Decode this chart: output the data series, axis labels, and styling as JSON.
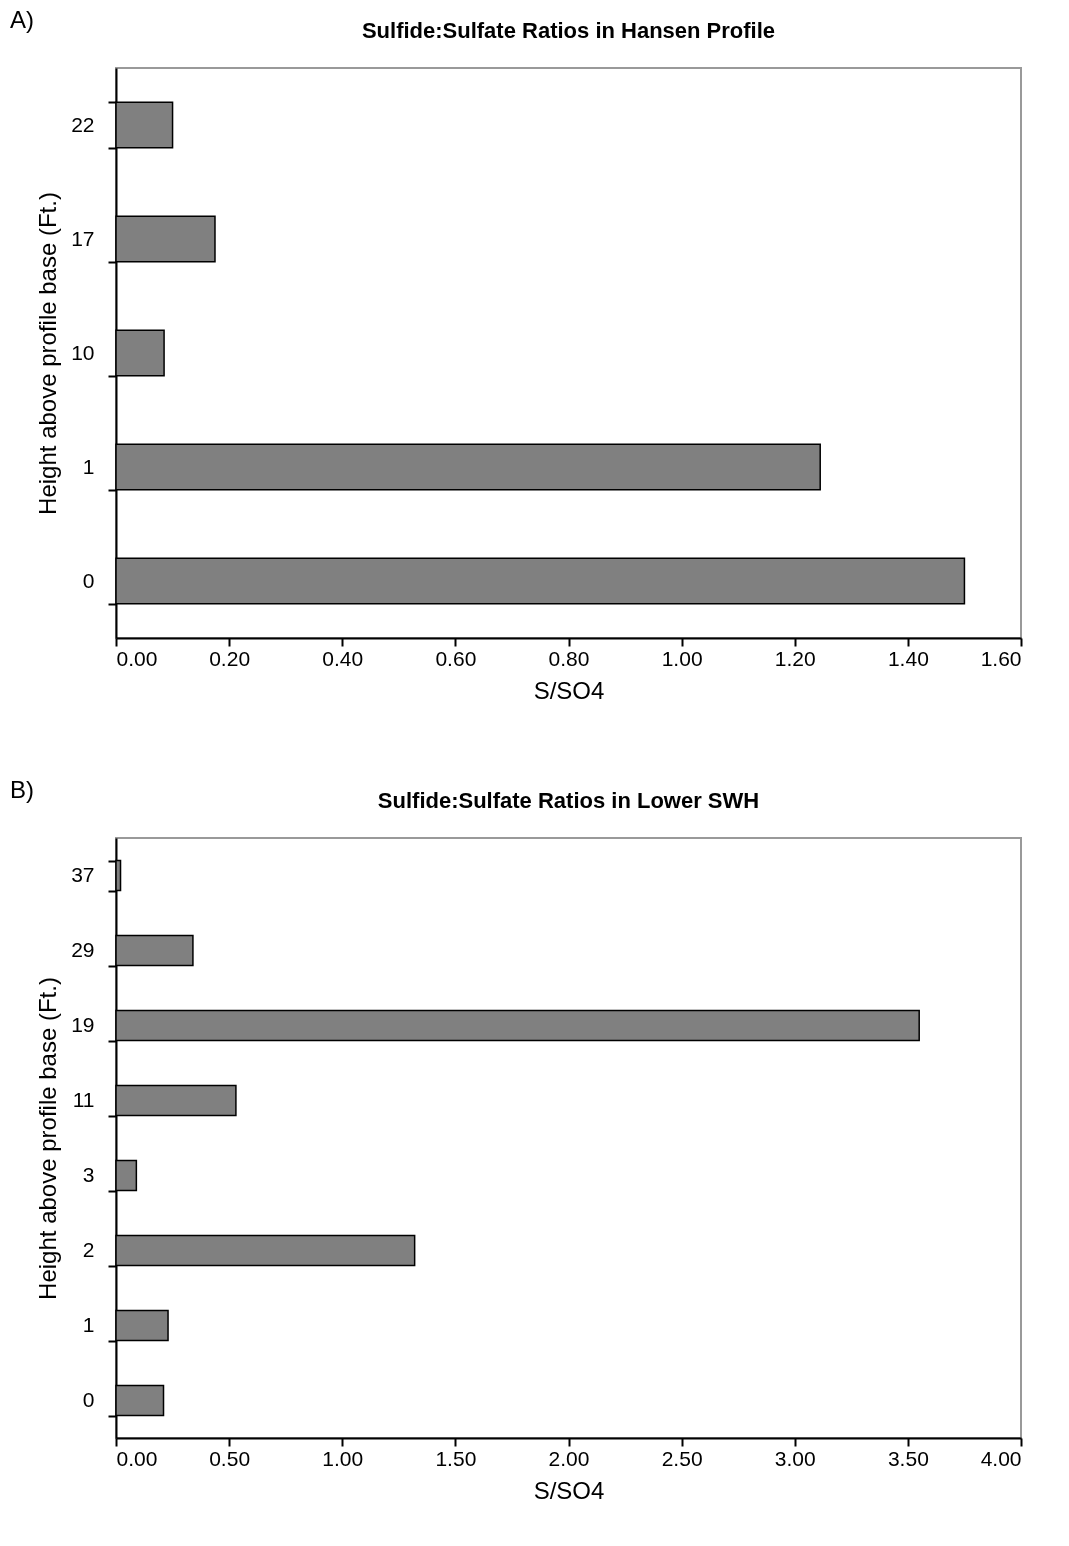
{
  "chart_data": [
    {
      "type": "bar",
      "orientation": "horizontal",
      "title": "Sulfide:Sulfate Ratios in Hansen Profile",
      "annotations": [
        "A)"
      ],
      "xlabel": "S/SO4",
      "ylabel": "Height above profile base (Ft.)",
      "categories": [
        "22",
        "17",
        "10",
        "1",
        "0"
      ],
      "values": [
        0.1,
        0.175,
        0.085,
        1.245,
        1.5
      ],
      "color": "#808080",
      "xlim": [
        0,
        1.6
      ],
      "xticks": [
        {
          "value": 0,
          "label": "0.00"
        },
        {
          "value": 0.2,
          "label": "0.20"
        },
        {
          "value": 0.4,
          "label": "0.40"
        },
        {
          "value": 0.6,
          "label": "0.60"
        },
        {
          "value": 0.8,
          "label": "0.80"
        },
        {
          "value": 1,
          "label": "1.00"
        },
        {
          "value": 1.2,
          "label": "1.20"
        },
        {
          "value": 1.4,
          "label": "1.40"
        },
        {
          "value": 1.6,
          "label": "1.60"
        }
      ],
      "grid": false
    },
    {
      "type": "bar",
      "orientation": "horizontal",
      "title": "Sulfide:Sulfate Ratios in Lower SWH",
      "annotations": [
        "B)"
      ],
      "xlabel": "S/SO4",
      "ylabel": "Height above profile base (Ft.)",
      "categories": [
        "37",
        "29",
        "19",
        "11",
        "3",
        "2",
        "1",
        "0"
      ],
      "values": [
        0.02,
        0.34,
        3.55,
        0.53,
        0.09,
        1.32,
        0.23,
        0.21
      ],
      "color": "#808080",
      "xlim": [
        0,
        4
      ],
      "xticks": [
        {
          "value": 0,
          "label": "0.00"
        },
        {
          "value": 0.5,
          "label": "0.50"
        },
        {
          "value": 1,
          "label": "1.00"
        },
        {
          "value": 1.5,
          "label": "1.50"
        },
        {
          "value": 2,
          "label": "2.00"
        },
        {
          "value": 2.5,
          "label": "2.50"
        },
        {
          "value": 3,
          "label": "3.00"
        },
        {
          "value": 3.5,
          "label": "3.50"
        },
        {
          "value": 4,
          "label": "4.00"
        }
      ],
      "grid": false
    }
  ]
}
